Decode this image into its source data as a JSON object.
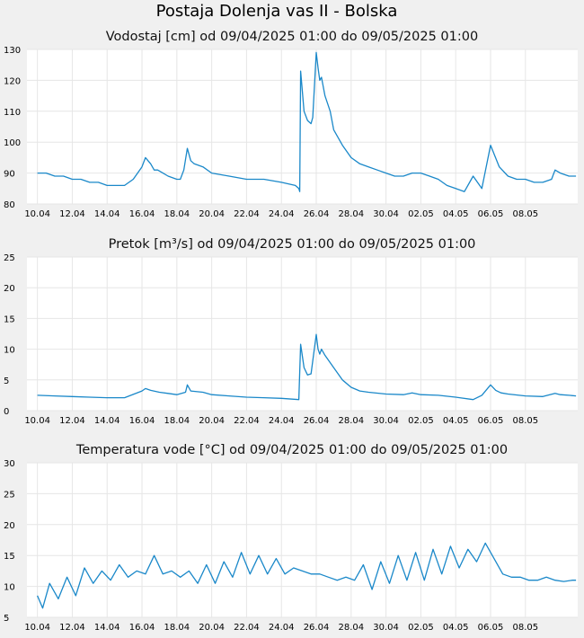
{
  "page_title": "Postaja Dolenja vas II - Bolska",
  "colors": {
    "series": "#1a88c9",
    "plot_bg": "#ffffff",
    "page_bg": "#f0f0f0",
    "grid": "#e6e6e6"
  },
  "chart_data": [
    {
      "type": "line",
      "title": "Vodostaj [cm] od 09/04/2025 01:00 do 09/05/2025 01:00",
      "ylim": [
        80,
        130
      ],
      "yticks": [
        "80",
        "90",
        "100",
        "110",
        "120",
        "130"
      ],
      "xticks": [
        "10.04",
        "12.04",
        "14.04",
        "16.04",
        "18.04",
        "20.04",
        "22.04",
        "24.04",
        "26.04",
        "28.04",
        "30.04",
        "02.05",
        "04.05",
        "06.05",
        "08.05"
      ],
      "grid": true,
      "series": [
        {
          "x": [
            0.0,
            0.5,
            1.0,
            1.5,
            2.0,
            2.5,
            3.0,
            3.5,
            4.0,
            4.5,
            5.0,
            5.5,
            6.0,
            6.2,
            6.5,
            6.7,
            6.9,
            7.2,
            7.5,
            8.0,
            8.2,
            8.4,
            8.6,
            8.8,
            9.0,
            9.5,
            10.0,
            11.0,
            12.0,
            13.0,
            14.0,
            14.8,
            15.0,
            15.05,
            15.1,
            15.3,
            15.5,
            15.7,
            15.8,
            16.0,
            16.1,
            16.2,
            16.3,
            16.5,
            16.8,
            17.0,
            17.5,
            18.0,
            18.5,
            19.0,
            19.5,
            20.0,
            20.5,
            21.0,
            21.5,
            22.0,
            22.5,
            23.0,
            23.5,
            24.0,
            24.5,
            25.0,
            25.5,
            26.0,
            26.5,
            27.0,
            27.5,
            28.0,
            28.5,
            29.0,
            29.5,
            29.7,
            30.0,
            30.5,
            30.9
          ],
          "y": [
            90,
            90,
            89,
            89,
            88,
            88,
            87,
            87,
            86,
            86,
            86,
            88,
            92,
            95,
            93,
            91,
            91,
            90,
            89,
            88,
            88,
            91,
            98,
            94,
            93,
            92,
            90,
            89,
            88,
            88,
            87,
            86,
            85,
            84,
            123,
            110,
            107,
            106,
            108,
            129,
            124,
            120,
            121,
            115,
            110,
            104,
            99,
            95,
            93,
            92,
            91,
            90,
            89,
            89,
            90,
            90,
            89,
            88,
            86,
            85,
            84,
            89,
            85,
            99,
            92,
            89,
            88,
            88,
            87,
            87,
            88,
            91,
            90,
            89,
            89
          ]
        }
      ]
    },
    {
      "type": "line",
      "title": "Pretok [m³/s] od 09/04/2025 01:00 do 09/05/2025 01:00",
      "ylim": [
        0,
        25
      ],
      "yticks": [
        "0",
        "5",
        "10",
        "15",
        "20",
        "25"
      ],
      "xticks": [
        "10.04",
        "12.04",
        "14.04",
        "16.04",
        "18.04",
        "20.04",
        "22.04",
        "24.04",
        "26.04",
        "28.04",
        "30.04",
        "02.05",
        "04.05",
        "06.05",
        "08.05"
      ],
      "grid": true,
      "series": [
        {
          "x": [
            0.0,
            1.0,
            2.0,
            3.0,
            4.0,
            5.0,
            6.0,
            6.2,
            6.5,
            7.0,
            7.5,
            8.0,
            8.5,
            8.6,
            8.8,
            9.5,
            10.0,
            11.0,
            12.0,
            13.0,
            14.0,
            15.0,
            15.1,
            15.3,
            15.5,
            15.7,
            16.0,
            16.1,
            16.2,
            16.3,
            16.5,
            17.0,
            17.5,
            18.0,
            18.5,
            19.0,
            20.0,
            21.0,
            21.5,
            22.0,
            23.0,
            24.0,
            25.0,
            25.5,
            26.0,
            26.3,
            26.6,
            27.0,
            28.0,
            29.0,
            29.7,
            30.0,
            30.5,
            30.9
          ],
          "y": [
            2.5,
            2.4,
            2.3,
            2.2,
            2.1,
            2.1,
            3.2,
            3.6,
            3.3,
            3.0,
            2.8,
            2.6,
            3.0,
            4.2,
            3.2,
            3.0,
            2.6,
            2.4,
            2.2,
            2.1,
            2.0,
            1.8,
            10.8,
            7.0,
            5.8,
            6.0,
            12.4,
            10.0,
            9.2,
            10.0,
            9.0,
            7.0,
            5.0,
            3.8,
            3.2,
            3.0,
            2.7,
            2.6,
            2.9,
            2.6,
            2.5,
            2.2,
            1.8,
            2.5,
            4.2,
            3.3,
            2.9,
            2.7,
            2.4,
            2.3,
            2.8,
            2.6,
            2.5,
            2.4
          ]
        }
      ]
    },
    {
      "type": "line",
      "title": "Temperatura vode [°C] od 09/04/2025 01:00 do 09/05/2025 01:00",
      "ylim": [
        5,
        30
      ],
      "yticks": [
        "5",
        "10",
        "15",
        "20",
        "25",
        "30"
      ],
      "xticks": [
        "10.04",
        "12.04",
        "14.04",
        "16.04",
        "18.04",
        "20.04",
        "22.04",
        "24.04",
        "26.04",
        "28.04",
        "30.04",
        "02.05",
        "04.05",
        "06.05",
        "08.05"
      ],
      "grid": true,
      "series": [
        {
          "x": [
            0.0,
            0.3,
            0.7,
            1.2,
            1.7,
            2.2,
            2.7,
            3.2,
            3.7,
            4.2,
            4.7,
            5.2,
            5.7,
            6.2,
            6.7,
            7.2,
            7.7,
            8.2,
            8.7,
            9.2,
            9.7,
            10.2,
            10.7,
            11.2,
            11.7,
            12.2,
            12.7,
            13.2,
            13.7,
            14.2,
            14.7,
            15.2,
            15.7,
            16.2,
            16.7,
            17.2,
            17.7,
            18.2,
            18.7,
            19.2,
            19.7,
            20.2,
            20.7,
            21.2,
            21.7,
            22.2,
            22.7,
            23.2,
            23.7,
            24.2,
            24.7,
            25.2,
            25.7,
            26.2,
            26.7,
            27.2,
            27.7,
            28.2,
            28.7,
            29.2,
            29.7,
            30.2,
            30.7,
            30.9
          ],
          "y": [
            8.5,
            6.5,
            10.5,
            8.0,
            11.5,
            8.5,
            13.0,
            10.5,
            12.5,
            11.0,
            13.5,
            11.5,
            12.5,
            12.0,
            15.0,
            12.0,
            12.5,
            11.5,
            12.5,
            10.5,
            13.5,
            10.5,
            14.0,
            11.5,
            15.5,
            12.0,
            15.0,
            12.0,
            14.5,
            12.0,
            13.0,
            12.5,
            12.0,
            12.0,
            11.5,
            11.0,
            11.5,
            11.0,
            13.5,
            9.5,
            14.0,
            10.5,
            15.0,
            11.0,
            15.5,
            11.0,
            16.0,
            12.0,
            16.5,
            13.0,
            16.0,
            14.0,
            17.0,
            14.5,
            12.0,
            11.5,
            11.5,
            11.0,
            11.0,
            11.5,
            11.0,
            10.8,
            11.0,
            11.0
          ]
        }
      ]
    }
  ]
}
